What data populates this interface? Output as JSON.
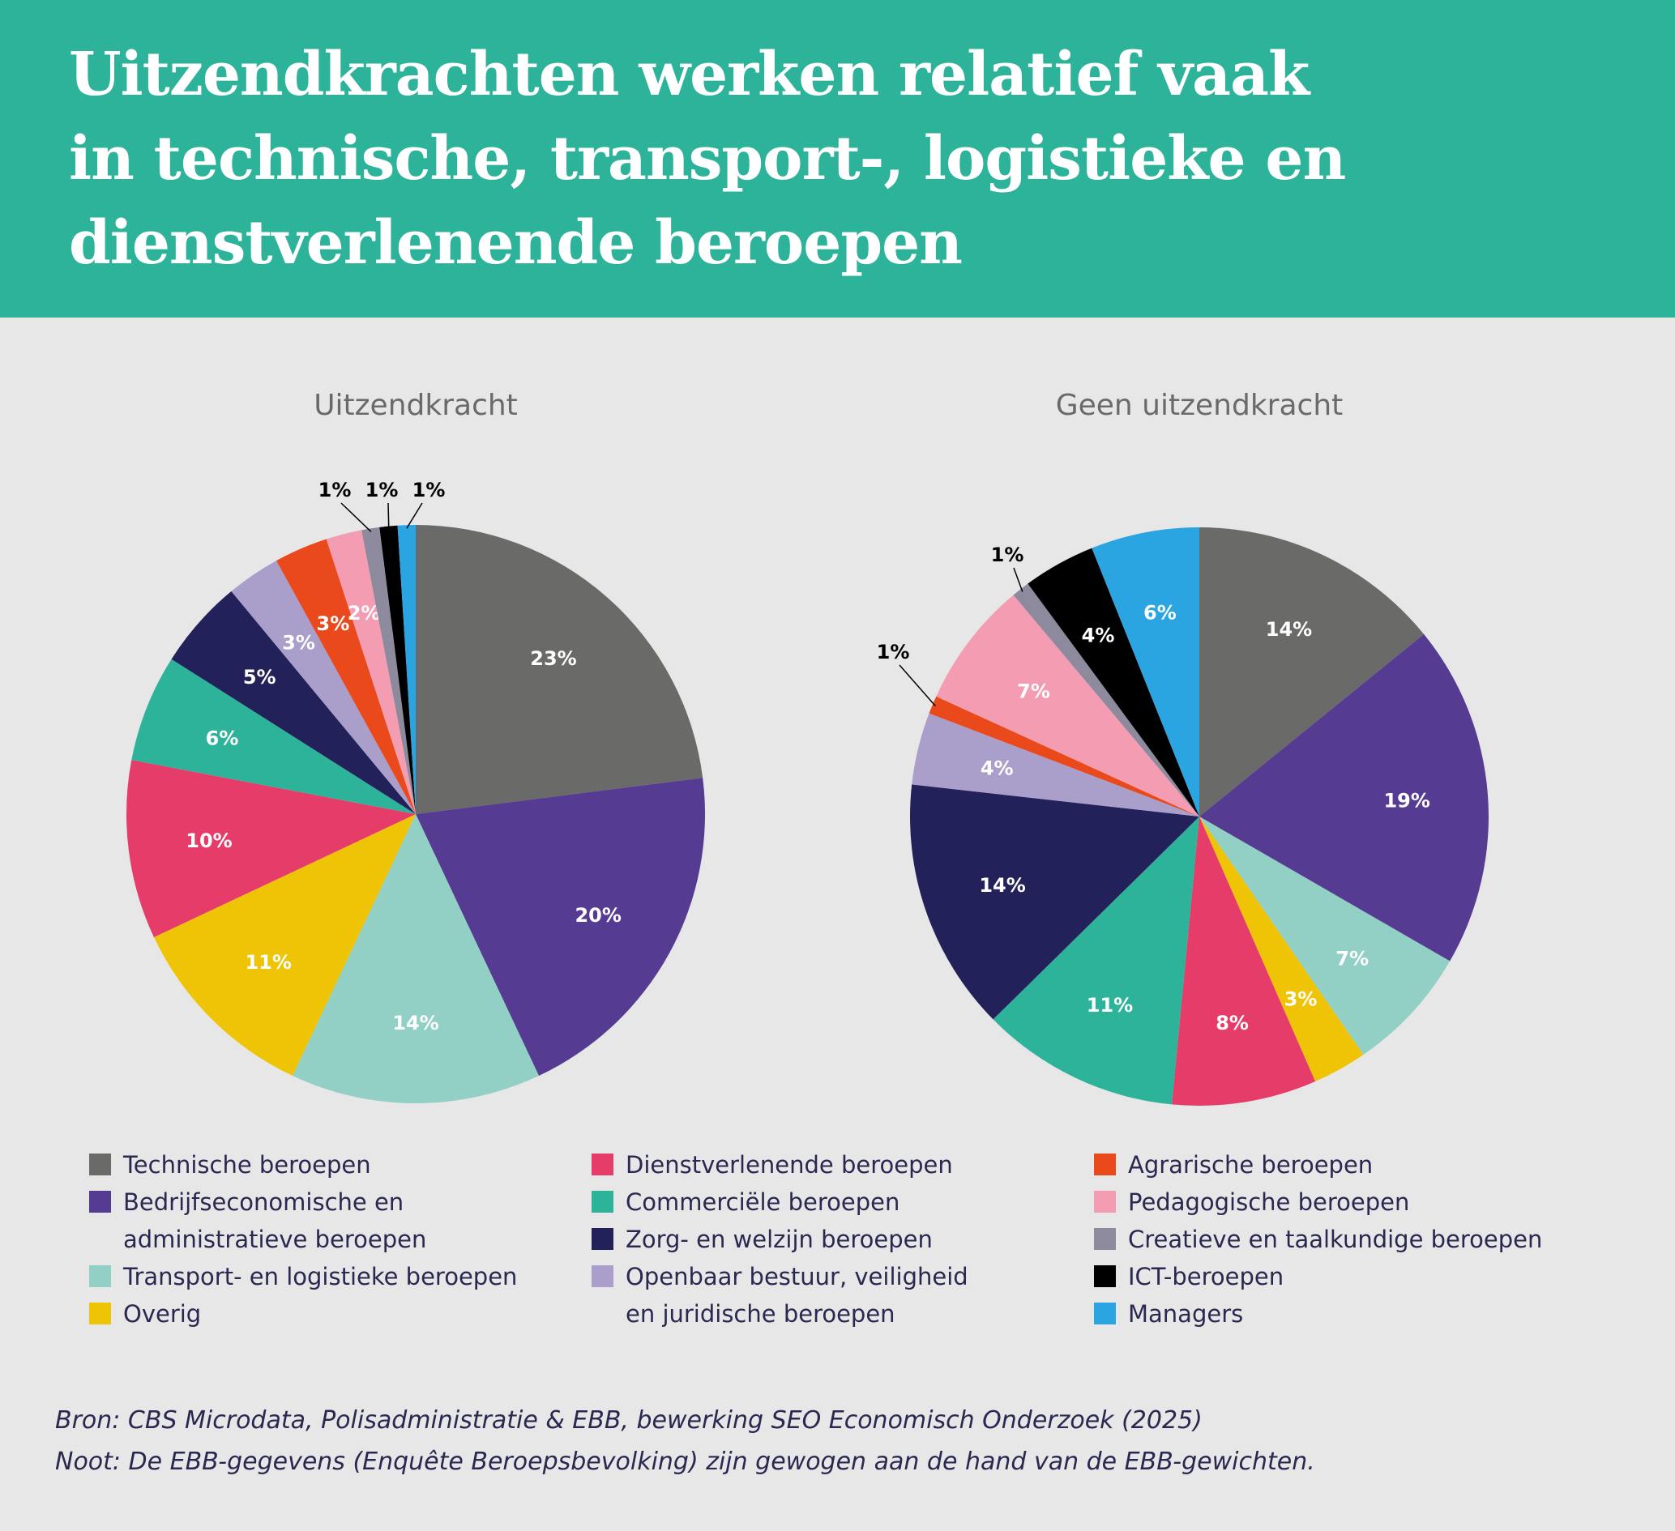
{
  "header": {
    "title_lines": [
      "Uitzendkrachten werken relatief vaak",
      "in technische, transport-, logistieke en",
      "dienstverlenende beroepen"
    ]
  },
  "colors": {
    "header_bg": "#2eb39b",
    "page_bg": "#e7e7e7",
    "title_text": "#ffffff"
  },
  "categories": [
    {
      "label_lines": [
        "Technische beroepen"
      ],
      "color": "#6a6a69"
    },
    {
      "label_lines": [
        "Bedrijfseconomische en",
        "administratieve beroepen"
      ],
      "color": "#553b91"
    },
    {
      "label_lines": [
        "Transport- en logistieke beroepen"
      ],
      "color": "#92d0c5"
    },
    {
      "label_lines": [
        "Overig"
      ],
      "color": "#f0c406"
    },
    {
      "label_lines": [
        "Dienstverlenende beroepen"
      ],
      "color": "#e63c69"
    },
    {
      "label_lines": [
        "Commerciële beroepen"
      ],
      "color": "#2eb39b"
    },
    {
      "label_lines": [
        "Zorg- en welzijn beroepen"
      ],
      "color": "#23215a"
    },
    {
      "label_lines": [
        "Openbaar bestuur, veiligheid",
        "en juridische beroepen"
      ],
      "color": "#aa9ecb"
    },
    {
      "label_lines": [
        "Agrarische beroepen"
      ],
      "color": "#ea4a1b"
    },
    {
      "label_lines": [
        "Pedagogische beroepen"
      ],
      "color": "#f49cb1"
    },
    {
      "label_lines": [
        "Creatieve en taalkundige beroepen"
      ],
      "color": "#8e8a9e"
    },
    {
      "label_lines": [
        "ICT-beroepen"
      ],
      "color": "#000000"
    },
    {
      "label_lines": [
        "Managers"
      ],
      "color": "#2ba5e1"
    }
  ],
  "chart_data": [
    {
      "type": "pie",
      "title": "Uitzendkracht",
      "slices": [
        {
          "category": "Technische beroepen",
          "value": 23,
          "label": "23%"
        },
        {
          "category": "Bedrijfseconomische en administratieve beroepen",
          "value": 20,
          "label": "20%"
        },
        {
          "category": "Transport- en logistieke beroepen",
          "value": 14,
          "label": "14%"
        },
        {
          "category": "Overig",
          "value": 11,
          "label": "11%"
        },
        {
          "category": "Dienstverlenende beroepen",
          "value": 10,
          "label": "10%"
        },
        {
          "category": "Commerciële beroepen",
          "value": 6,
          "label": "6%"
        },
        {
          "category": "Zorg- en welzijn beroepen",
          "value": 5,
          "label": "5%"
        },
        {
          "category": "Openbaar bestuur, veiligheid en juridische beroepen",
          "value": 3,
          "label": "3%"
        },
        {
          "category": "Agrarische beroepen",
          "value": 3,
          "label": "3%"
        },
        {
          "category": "Pedagogische beroepen",
          "value": 2,
          "label": "2%"
        },
        {
          "category": "Creatieve en taalkundige beroepen",
          "value": 1,
          "label": "1%"
        },
        {
          "category": "ICT-beroepen",
          "value": 1,
          "label": "1%"
        },
        {
          "category": "Managers",
          "value": 1,
          "label": "1%"
        }
      ]
    },
    {
      "type": "pie",
      "title": "Geen uitzendkracht",
      "slices": [
        {
          "category": "Technische beroepen",
          "value": 14,
          "label": "14%"
        },
        {
          "category": "Bedrijfseconomische en administratieve beroepen",
          "value": 19,
          "label": "19%"
        },
        {
          "category": "Transport- en logistieke beroepen",
          "value": 7,
          "label": "7%"
        },
        {
          "category": "Overig",
          "value": 3,
          "label": "3%"
        },
        {
          "category": "Dienstverlenende beroepen",
          "value": 8,
          "label": "8%"
        },
        {
          "category": "Commerciële beroepen",
          "value": 11,
          "label": "11%"
        },
        {
          "category": "Zorg- en welzijn beroepen",
          "value": 14,
          "label": "14%"
        },
        {
          "category": "Openbaar bestuur, veiligheid en juridische beroepen",
          "value": 4,
          "label": "4%"
        },
        {
          "category": "Agrarische beroepen",
          "value": 1,
          "label": "1%"
        },
        {
          "category": "Pedagogische beroepen",
          "value": 7,
          "label": "7%"
        },
        {
          "category": "Creatieve en taalkundige beroepen",
          "value": 1,
          "label": "1%"
        },
        {
          "category": "ICT-beroepen",
          "value": 4,
          "label": "4%"
        },
        {
          "category": "Managers",
          "value": 6,
          "label": "6%"
        }
      ]
    }
  ],
  "source": {
    "lines": [
      "Bron: CBS Microdata, Polisadministratie & EBB, bewerking SEO Economisch Onderzoek (2025)",
      "Noot: De EBB-gegevens (Enquête Beroepsbevolking) zijn gewogen aan de hand van de EBB-gewichten."
    ]
  }
}
